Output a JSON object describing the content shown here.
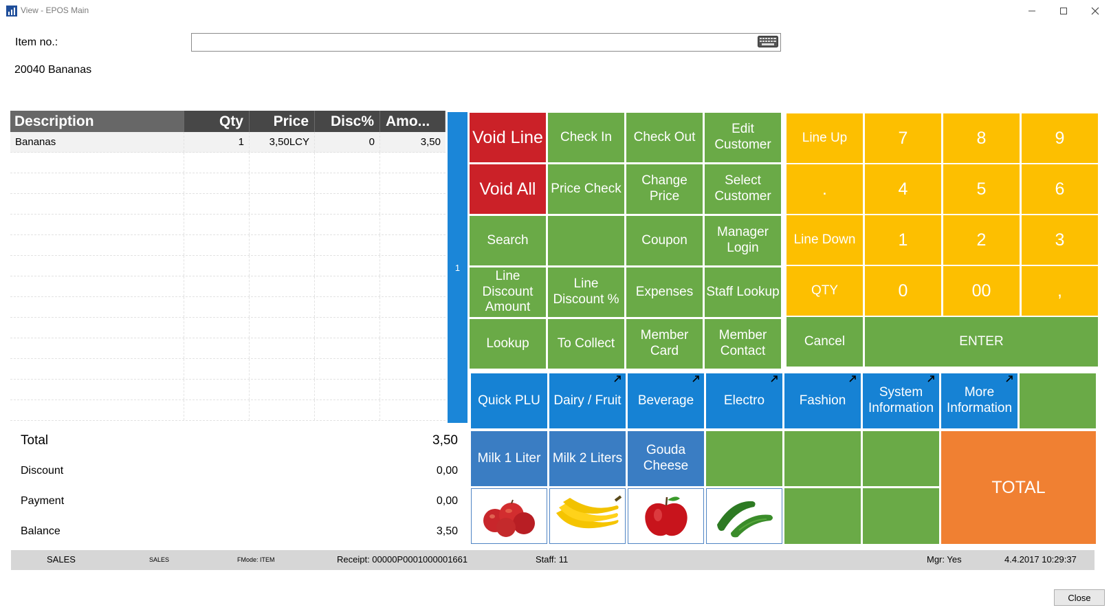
{
  "window": {
    "title": "View - EPOS Main",
    "minimize_icon": "minimize-icon",
    "maximize_icon": "maximize-icon",
    "close_icon": "close-icon"
  },
  "item_entry": {
    "label": "Item no.:",
    "value": "",
    "placeholder": "",
    "selected_item": "20040 Bananas"
  },
  "journal": {
    "columns": [
      "Description",
      "Qty",
      "Price",
      "Disc%",
      "Amo..."
    ],
    "rows": [
      {
        "description": "Bananas",
        "qty": "1",
        "price": "3,50LCY",
        "disc": "0",
        "amount": "3,50"
      }
    ]
  },
  "totals": {
    "total_label": "Total",
    "total_value": "3,50",
    "discount_label": "Discount",
    "discount_value": "0,00",
    "payment_label": "Payment",
    "payment_value": "0,00",
    "balance_label": "Balance",
    "balance_value": "3,50"
  },
  "page_indicator": "1",
  "function_buttons": [
    "Void Line",
    "Check In",
    "Check Out",
    "Edit Customer",
    "Void All",
    "Price Check",
    "Change Price",
    "Select Customer",
    "Search",
    "",
    "Coupon",
    "Manager Login",
    "Line Discount Amount",
    "Line Discount %",
    "Expenses",
    "Staff Lookup",
    "Lookup",
    "To Collect",
    "Member Card",
    "Member Contact"
  ],
  "keypad": {
    "line_up": "Line Up",
    "dot": ".",
    "line_down": "Line Down",
    "qty": "QTY",
    "digits": [
      "7",
      "8",
      "9",
      "4",
      "5",
      "6",
      "1",
      "2",
      "3",
      "0",
      "00",
      ","
    ],
    "cancel": "Cancel",
    "enter": "ENTER"
  },
  "menus": [
    "Quick PLU",
    "Dairy / Fruit",
    "Beverage",
    "Electro",
    "Fashion",
    "System Information",
    "More Information"
  ],
  "products": [
    "Milk 1 Liter",
    "Milk 2 Liters",
    "Gouda Cheese"
  ],
  "product_images": [
    "apples-image",
    "bananas-image",
    "apple-image",
    "cucumbers-image"
  ],
  "total_button": "TOTAL",
  "status_bar": {
    "mode": "SALES",
    "submode": "SALES",
    "fmode": "FMode: ITEM",
    "receipt": "Receipt: 00000P0001000001661",
    "staff": "Staff: 11",
    "manager": "Mgr: Yes",
    "datetime": "4.4.2017 10:29:37"
  },
  "close_button": "Close",
  "colors": {
    "function_green": "#6aaa47",
    "void_red": "#cb2128",
    "keypad_yellow": "#fdbf00",
    "menu_blue": "#1682d4",
    "total_orange": "#f08032",
    "grid_header": "#474747"
  }
}
